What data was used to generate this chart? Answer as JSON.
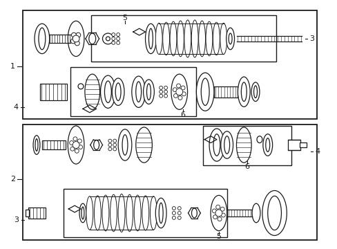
{
  "bg_color": "#ffffff",
  "line_color": "#1a1a1a",
  "fig_width": 4.89,
  "fig_height": 3.6
}
